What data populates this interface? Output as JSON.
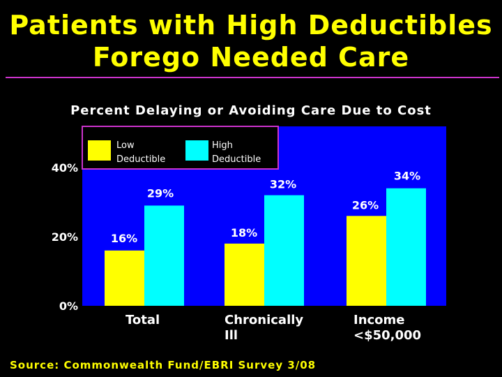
{
  "slide": {
    "title_line_1": "Patients with High Deductibles",
    "title_line_2": "Forego Needed Care",
    "source": "Source: Commonwealth Fund/EBRI Survey 3/08"
  },
  "colors": {
    "background": "#000000",
    "title": "#ffff00",
    "plot_background": "#0000ff",
    "low_deductible": "#ffff00",
    "high_deductible": "#00ffff",
    "divider": "#cc33cc",
    "legend_border": "#cc33cc"
  },
  "chart_data": {
    "type": "bar",
    "title": "Percent Delaying or Avoiding Care Due to Cost",
    "categories": [
      [
        "Total"
      ],
      [
        "Chronically",
        "Ill"
      ],
      [
        "Income",
        "<$50,000"
      ]
    ],
    "series": [
      {
        "name": "Low Deductible",
        "name_lines": [
          "Low",
          "Deductible"
        ],
        "values": [
          16,
          18,
          26
        ],
        "labels": [
          "16%",
          "18%",
          "26%"
        ]
      },
      {
        "name": "High Deductible",
        "name_lines": [
          "High",
          "Deductible"
        ],
        "values": [
          29,
          32,
          34
        ],
        "labels": [
          "29%",
          "32%",
          "34%"
        ]
      }
    ],
    "yticks": [
      {
        "value": 0,
        "label": "0%"
      },
      {
        "value": 20,
        "label": "20%"
      },
      {
        "value": 40,
        "label": "40%"
      }
    ],
    "ylim": [
      0,
      40
    ],
    "xlabel": "",
    "ylabel": "",
    "grid": false,
    "legend": "top-left"
  }
}
